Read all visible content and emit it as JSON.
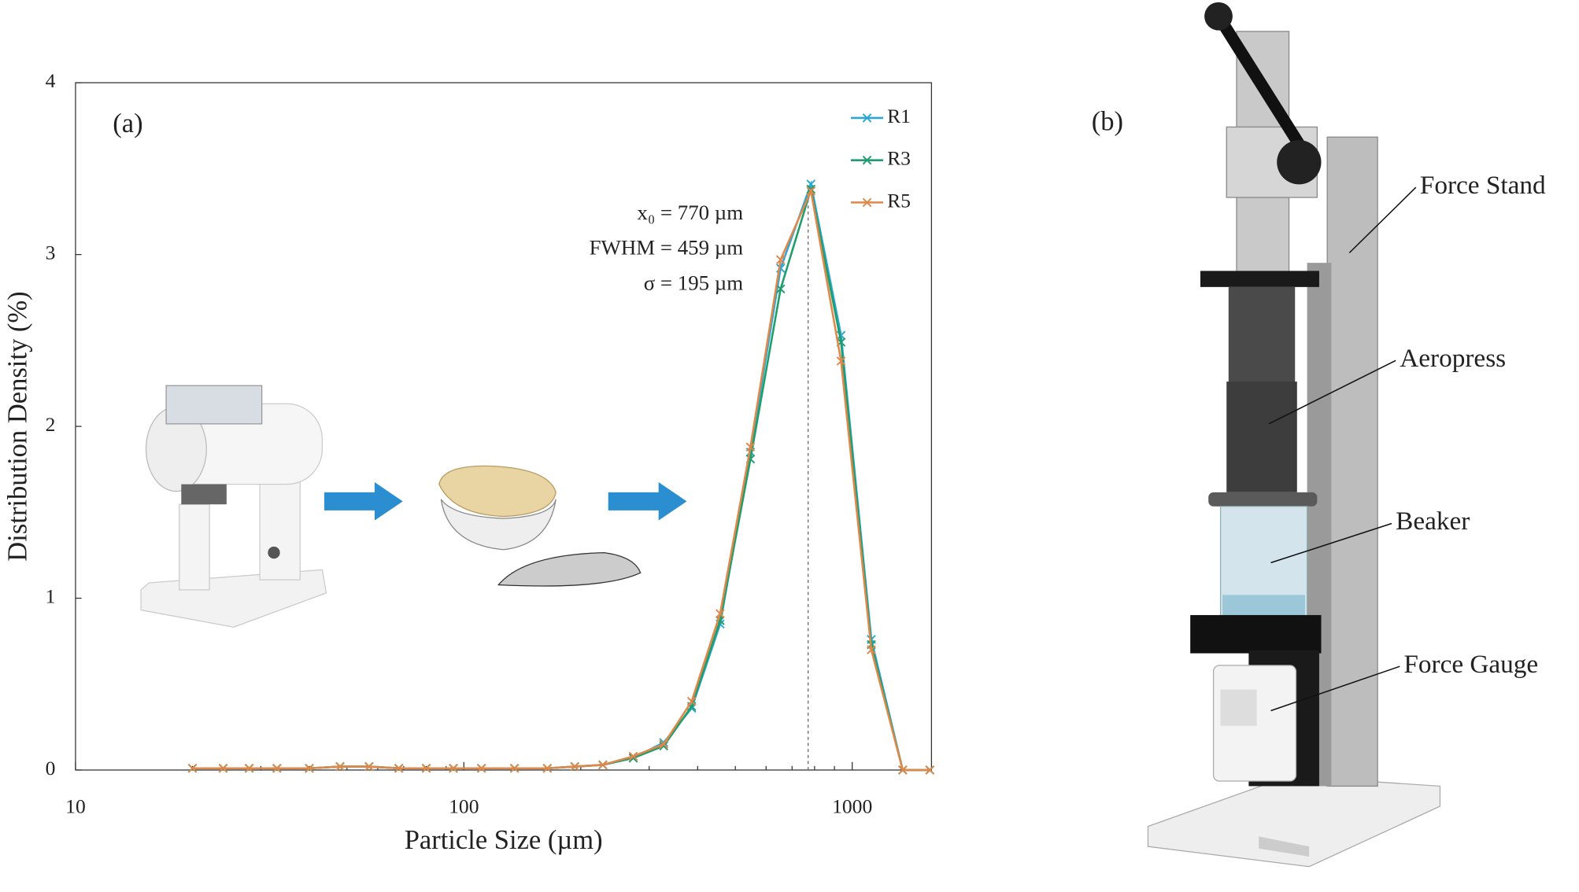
{
  "chart_data": {
    "type": "line",
    "panel_label": "(a)",
    "xlabel": "Particle Size (µm)",
    "ylabel": "Distribution Density (%)",
    "xscale": "log",
    "xlim": [
      10,
      1600
    ],
    "ylim": [
      0,
      4
    ],
    "xticks": [
      10,
      100,
      1000
    ],
    "yticks": [
      0,
      1,
      2,
      3,
      4
    ],
    "xminorticks": [
      20,
      30,
      40,
      50,
      60,
      70,
      80,
      90,
      200,
      300,
      400,
      500,
      600,
      700,
      800,
      900
    ],
    "x": [
      20,
      24,
      28,
      33,
      40,
      48,
      57,
      68,
      80,
      94,
      111,
      135,
      164,
      193,
      228,
      273,
      327,
      386,
      457,
      547,
      654,
      783,
      936,
      1120,
      1349,
      1585
    ],
    "series": [
      {
        "name": "R1",
        "color": "#2ba6d5",
        "values": [
          0.01,
          0.01,
          0.01,
          0.01,
          0.01,
          0.02,
          0.02,
          0.01,
          0.01,
          0.01,
          0.01,
          0.01,
          0.01,
          0.02,
          0.03,
          0.07,
          0.16,
          0.36,
          0.85,
          1.85,
          2.92,
          3.41,
          2.53,
          0.76,
          0,
          0
        ]
      },
      {
        "name": "R3",
        "color": "#1e9e6c",
        "values": [
          0.01,
          0.01,
          0.01,
          0.01,
          0.01,
          0.02,
          0.02,
          0.01,
          0.01,
          0.01,
          0.01,
          0.01,
          0.01,
          0.02,
          0.03,
          0.07,
          0.14,
          0.37,
          0.87,
          1.81,
          2.8,
          3.38,
          2.49,
          0.73,
          0,
          0
        ]
      },
      {
        "name": "R5",
        "color": "#e0874a",
        "values": [
          0.01,
          0.01,
          0.01,
          0.01,
          0.01,
          0.02,
          0.02,
          0.01,
          0.01,
          0.01,
          0.01,
          0.01,
          0.01,
          0.02,
          0.03,
          0.08,
          0.15,
          0.4,
          0.91,
          1.88,
          2.97,
          3.37,
          2.38,
          0.7,
          0,
          0
        ]
      }
    ],
    "legend": "upper right",
    "vline": 770,
    "annotations": [
      "x₀ = 770 µm",
      "FWHM = 459 µm",
      "σ = 195 µm"
    ]
  },
  "panel_b": {
    "label": "(b)",
    "callouts": [
      "Force Stand",
      "Aeropress",
      "Beaker",
      "Force Gauge"
    ]
  }
}
